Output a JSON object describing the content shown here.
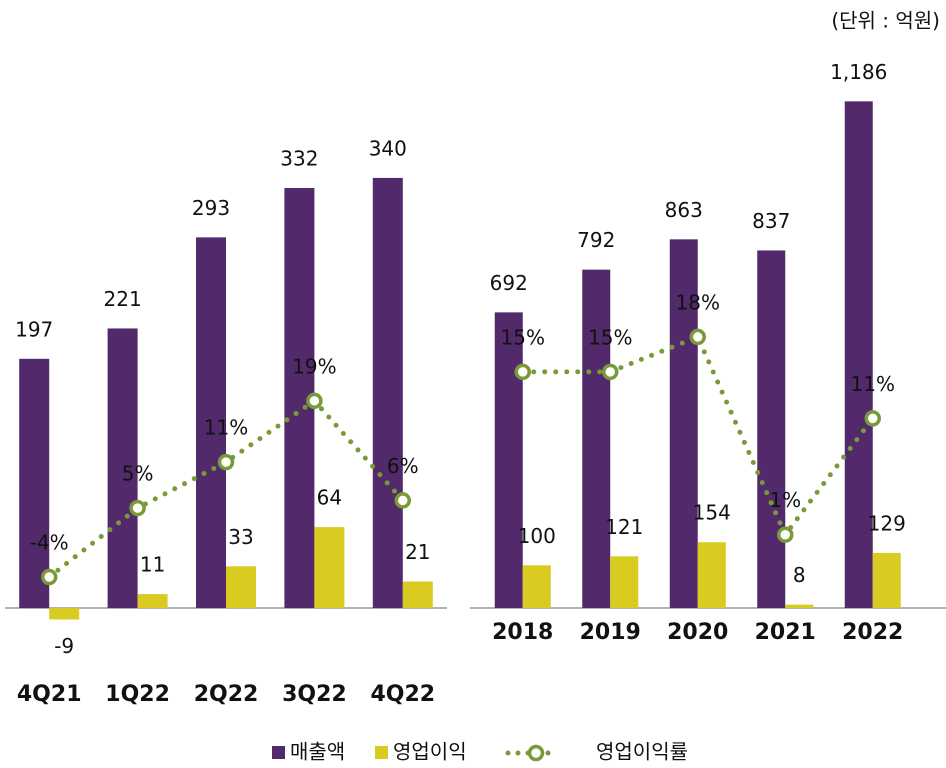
{
  "unit": "(단위 : 억원)",
  "chart_data": [
    {
      "type": "bar",
      "categories": [
        "4Q21",
        "1Q22",
        "2Q22",
        "3Q22",
        "4Q22"
      ],
      "ylim": [
        -30,
        400
      ],
      "y2lim": [
        -13,
        58
      ],
      "series": [
        {
          "name": "매출액",
          "color": "#522a6b",
          "values": [
            197,
            221,
            293,
            332,
            340
          ]
        },
        {
          "name": "영업이익",
          "color": "#d9cb1f",
          "values": [
            -9,
            11,
            33,
            64,
            21
          ]
        },
        {
          "name": "영업이익률",
          "color": "#7a9a3a",
          "axis": "y2",
          "values": [
            -4,
            5,
            11,
            19,
            6
          ],
          "value_labels": [
            "-4%",
            "5%",
            "11%",
            "19%",
            "6%"
          ]
        }
      ]
    },
    {
      "type": "bar",
      "categories": [
        "2018",
        "2019",
        "2020",
        "2021",
        "2022"
      ],
      "ylim": [
        0,
        1250
      ],
      "y2lim": [
        -5.3,
        40.6
      ],
      "series": [
        {
          "name": "매출액",
          "color": "#522a6b",
          "values": [
            692,
            792,
            863,
            837,
            1186
          ],
          "value_labels": [
            "692",
            "792",
            "863",
            "837",
            "1,186"
          ]
        },
        {
          "name": "영업이익",
          "color": "#d9cb1f",
          "values": [
            100,
            121,
            154,
            8,
            129
          ]
        },
        {
          "name": "영업이익률",
          "color": "#7a9a3a",
          "axis": "y2",
          "values": [
            15,
            15,
            18,
            1,
            11
          ],
          "value_labels": [
            "15%",
            "15%",
            "18%",
            "1%",
            "11%"
          ]
        }
      ]
    }
  ]
}
